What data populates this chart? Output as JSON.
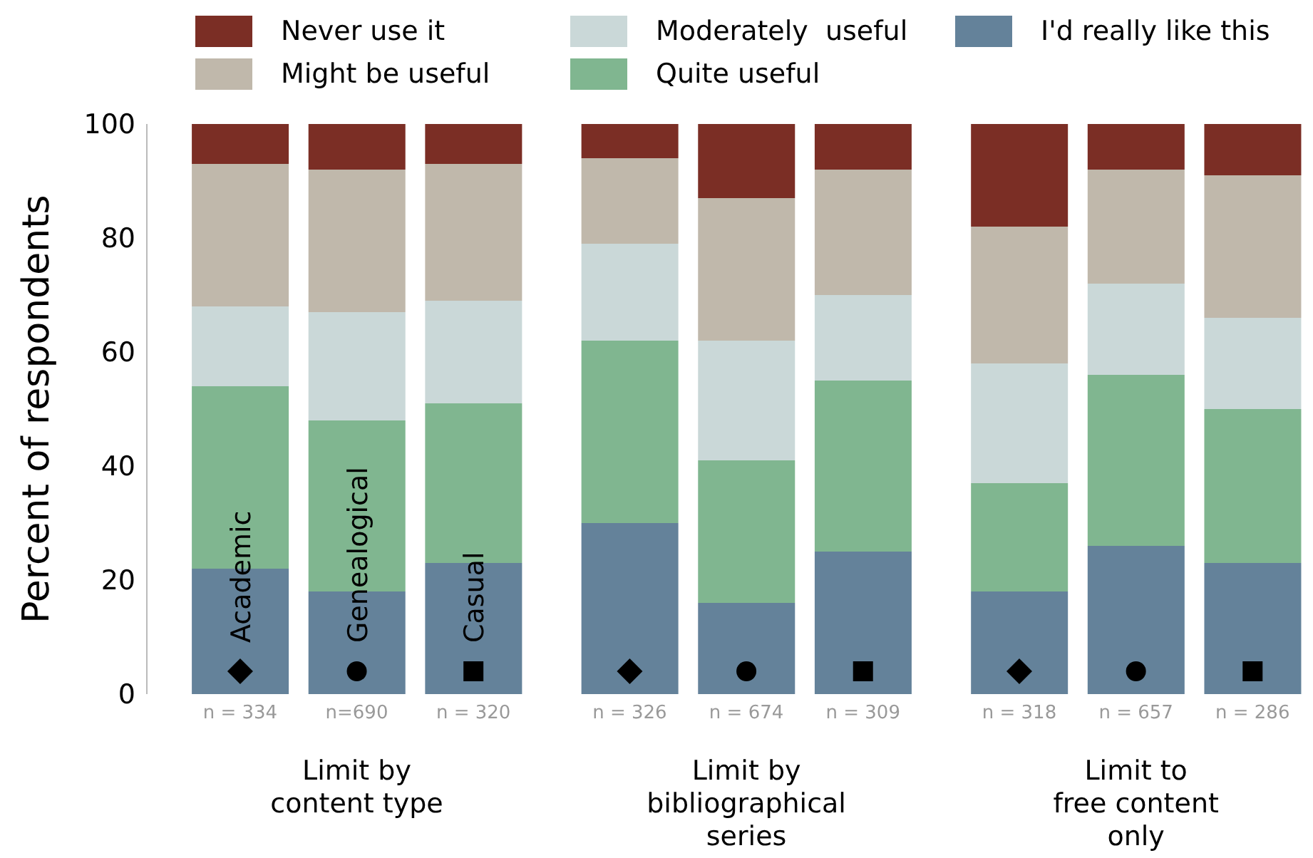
{
  "chart_data": {
    "type": "bar",
    "stacked": true,
    "ylabel": "Percent of respondents",
    "ylim": [
      0,
      100
    ],
    "yticks": [
      0,
      20,
      40,
      60,
      80,
      100
    ],
    "legend": "top",
    "categories": [
      "n = 334",
      "n=690",
      "n = 320",
      "n = 326",
      "n = 674",
      "n = 309",
      "n = 318",
      "n = 657",
      "n = 286"
    ],
    "series": [
      {
        "name": "I'd really like this",
        "color": "#64829a",
        "values": [
          22,
          18,
          23,
          30,
          16,
          25,
          18,
          26,
          23
        ]
      },
      {
        "name": "Quite useful",
        "color": "#80b690",
        "values": [
          32,
          30,
          28,
          32,
          25,
          30,
          19,
          30,
          27
        ]
      },
      {
        "name": "Moderately  useful",
        "color": "#cad8d8",
        "values": [
          14,
          19,
          18,
          17,
          21,
          15,
          21,
          16,
          16
        ]
      },
      {
        "name": "Might be useful",
        "color": "#c0b8ab",
        "values": [
          25,
          25,
          24,
          15,
          25,
          22,
          24,
          20,
          25
        ]
      },
      {
        "name": "Never use it",
        "color": "#7b2e25",
        "values": [
          7,
          8,
          7,
          6,
          13,
          8,
          18,
          8,
          9
        ]
      }
    ],
    "annotations": [
      "Limit by\ncontent type",
      "Limit by\nbibliographical\nseries",
      "Limit to\nfree content\nonly",
      "Academic",
      "Genealogical",
      "Casual"
    ]
  }
}
